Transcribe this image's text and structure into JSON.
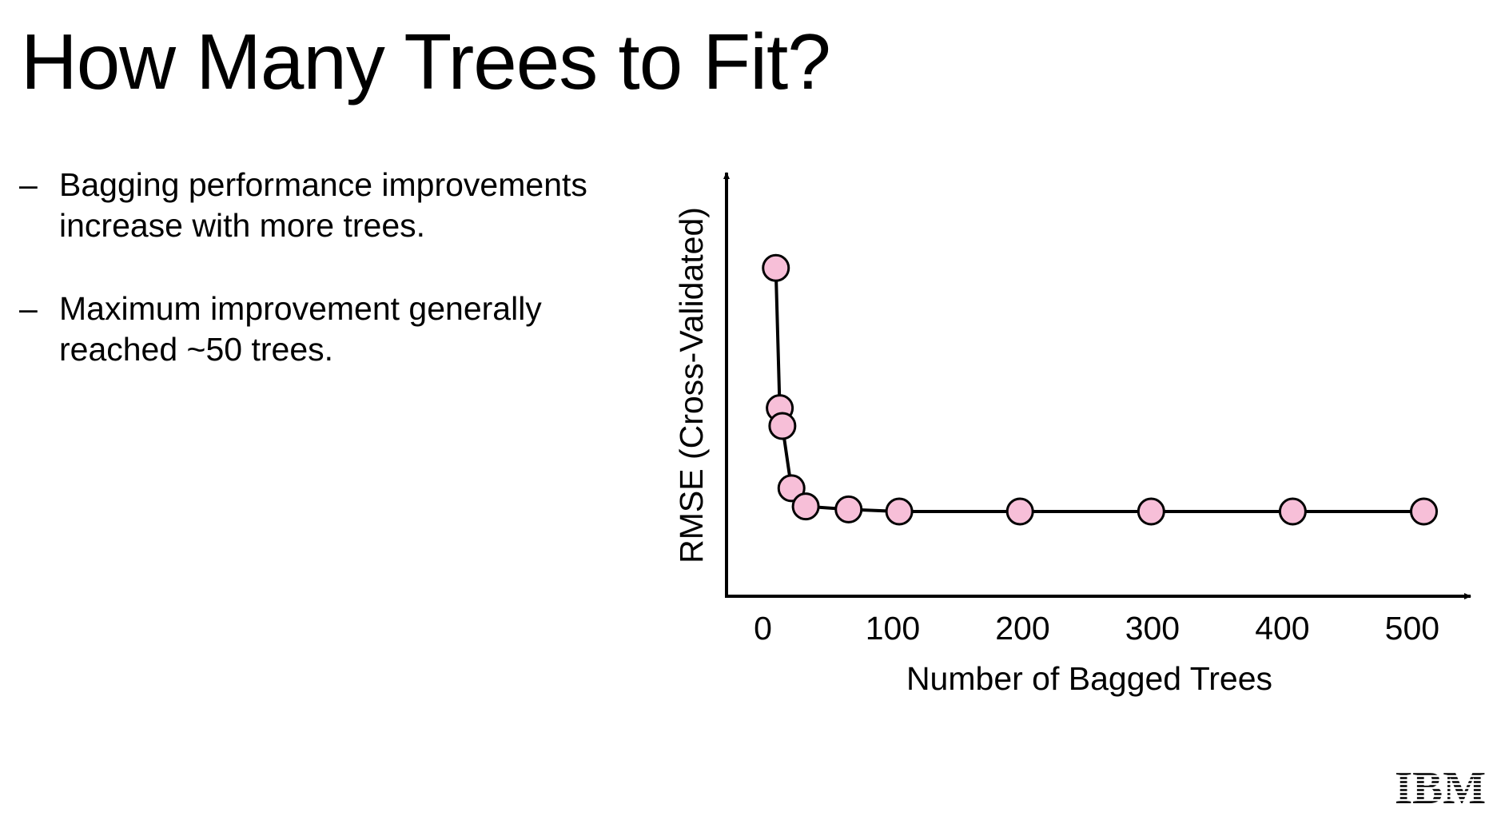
{
  "slide": {
    "title": "How Many Trees to Fit?",
    "bullets": [
      {
        "dash": "–",
        "lines": [
          "Bagging performance  improvements",
          "increase with more trees."
        ]
      },
      {
        "dash": "–",
        "lines": [
          "Maximum improvement generally",
          "reached ~50 trees."
        ]
      }
    ],
    "logo": {
      "icon": "ibm-logo",
      "text": "IBM"
    }
  },
  "chart_data": {
    "type": "line",
    "xlabel": "Number of Bagged Trees",
    "ylabel": "RMSE (Cross-Validated)",
    "x_ticks": [
      "0",
      "100",
      "200",
      "300",
      "400",
      "500"
    ],
    "x_tick_values": [
      0,
      100,
      200,
      300,
      400,
      500
    ],
    "y_ticks_shown": false,
    "xlim": [
      -28,
      545
    ],
    "ylim": [
      0,
      100
    ],
    "grid": false,
    "legend": "none",
    "series": [
      {
        "x": [
          10,
          13,
          15,
          22,
          33,
          66,
          105,
          198,
          299,
          408,
          509
        ],
        "y": [
          77.5,
          44.4,
          40.2,
          25.5,
          21.2,
          20.5,
          20.0,
          20.0,
          20.0,
          20.0,
          20.0
        ],
        "marker": "circle",
        "marker_fill": "#f7bfd8",
        "marker_edge": "#000000",
        "line_color": "#000000"
      }
    ]
  }
}
